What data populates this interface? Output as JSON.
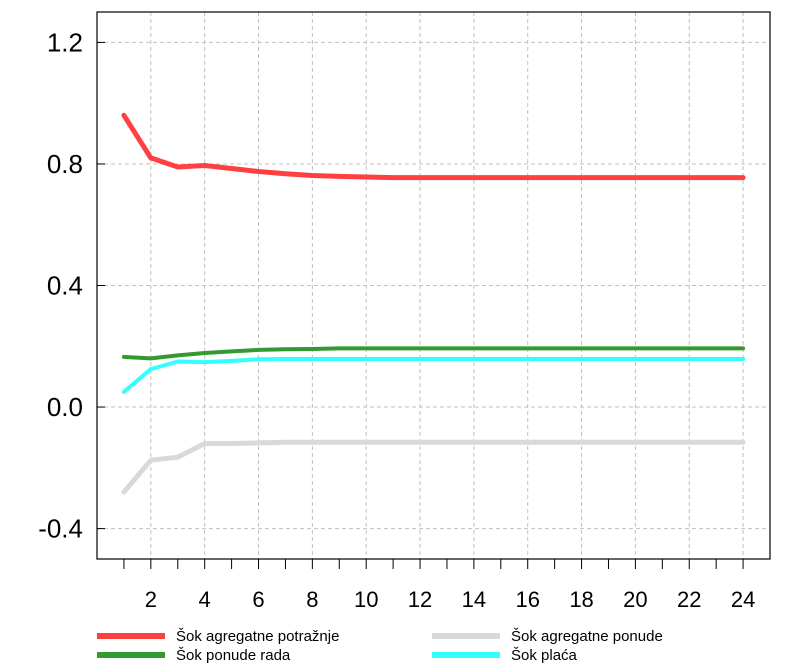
{
  "chart_data": {
    "type": "line",
    "title": "",
    "xlabel": "",
    "ylabel": "",
    "x": [
      1,
      2,
      3,
      4,
      5,
      6,
      7,
      8,
      9,
      10,
      11,
      12,
      13,
      14,
      15,
      16,
      17,
      18,
      19,
      20,
      21,
      22,
      23,
      24
    ],
    "xlim": [
      0,
      25
    ],
    "ylim": [
      -0.5,
      1.3
    ],
    "x_ticks": [
      2,
      4,
      6,
      8,
      10,
      12,
      14,
      16,
      18,
      20,
      22,
      24
    ],
    "x_tick_labels": [
      "2",
      "4",
      "6",
      "8",
      "10",
      "12",
      "14",
      "16",
      "18",
      "20",
      "22",
      "24"
    ],
    "y_ticks": [
      -0.4,
      0.0,
      0.4,
      0.8,
      1.2
    ],
    "y_tick_labels": [
      "-0.4",
      "0.0",
      "0.4",
      "0.8",
      "1.2"
    ],
    "grid": true,
    "legend_position": "bottom",
    "series": [
      {
        "name": "Šok agregatne potražnje",
        "color": "#ff4040",
        "values": [
          0.96,
          0.82,
          0.79,
          0.795,
          0.785,
          0.775,
          0.768,
          0.762,
          0.759,
          0.757,
          0.755,
          0.755,
          0.755,
          0.755,
          0.755,
          0.755,
          0.755,
          0.755,
          0.755,
          0.755,
          0.755,
          0.755,
          0.755,
          0.755
        ]
      },
      {
        "name": "Šok agregatne ponude",
        "color": "#d9d9d9",
        "values": [
          -0.28,
          -0.175,
          -0.165,
          -0.12,
          -0.12,
          -0.118,
          -0.116,
          -0.116,
          -0.116,
          -0.116,
          -0.116,
          -0.116,
          -0.116,
          -0.116,
          -0.116,
          -0.116,
          -0.116,
          -0.116,
          -0.116,
          -0.116,
          -0.116,
          -0.116,
          -0.116,
          -0.116
        ]
      },
      {
        "name": "Šok ponude rada",
        "color": "#339933",
        "values": [
          0.165,
          0.16,
          0.17,
          0.178,
          0.183,
          0.188,
          0.19,
          0.191,
          0.193,
          0.193,
          0.193,
          0.193,
          0.193,
          0.193,
          0.193,
          0.193,
          0.193,
          0.193,
          0.193,
          0.193,
          0.193,
          0.193,
          0.193,
          0.193
        ]
      },
      {
        "name": "Šok plaća",
        "color": "#33ffff",
        "values": [
          0.05,
          0.125,
          0.15,
          0.148,
          0.152,
          0.157,
          0.158,
          0.158,
          0.158,
          0.158,
          0.158,
          0.158,
          0.158,
          0.158,
          0.158,
          0.158,
          0.158,
          0.158,
          0.158,
          0.158,
          0.158,
          0.158,
          0.158,
          0.158
        ]
      }
    ]
  }
}
